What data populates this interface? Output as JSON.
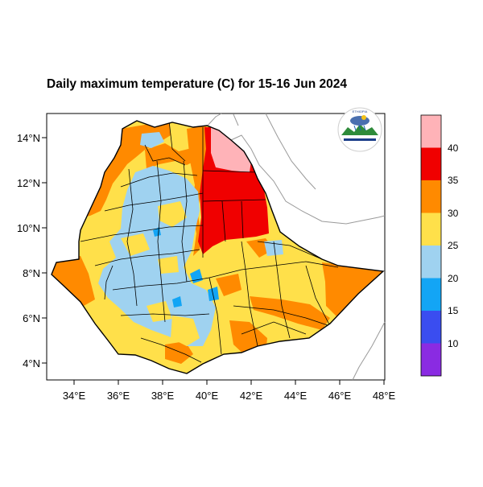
{
  "title": "Daily maximum temperature (C) for 15-16 Jun 2024",
  "x_ticks": [
    "34°E",
    "36°E",
    "38°E",
    "40°E",
    "42°E",
    "44°E",
    "46°E",
    "48°E"
  ],
  "y_ticks": [
    "14°N",
    "12°N",
    "10°N",
    "8°N",
    "6°N",
    "4°N"
  ],
  "colorbar": {
    "labels": [
      "40",
      "35",
      "30",
      "25",
      "20",
      "15",
      "10"
    ],
    "colors": [
      "#ffb3b8",
      "#f00000",
      "#ff8a00",
      "#ffe04a",
      "#9fd2f0",
      "#13a5f5",
      "#3a4df0",
      "#8a2be2"
    ]
  },
  "chart_data": {
    "type": "map",
    "title": "Daily maximum temperature (C) for 15-16 Jun 2024",
    "xlim": [
      33,
      48
    ],
    "ylim": [
      3,
      15
    ],
    "x_ticks": [
      34,
      36,
      38,
      40,
      42,
      44,
      46,
      48
    ],
    "y_ticks": [
      4,
      6,
      8,
      10,
      12,
      14
    ],
    "levels": [
      10,
      15,
      20,
      25,
      30,
      35,
      40
    ]
  },
  "logo": {
    "text": "Ethiopian Meteorology Institute"
  }
}
